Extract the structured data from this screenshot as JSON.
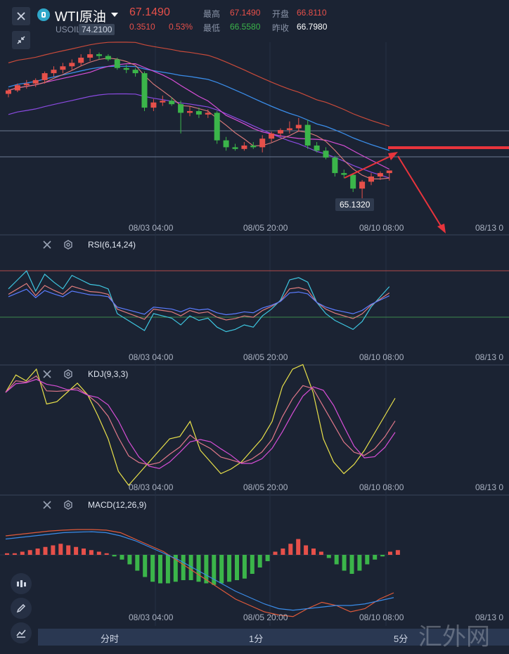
{
  "header": {
    "symbol": "WTI原油",
    "sub_symbol": "USOIL",
    "price": "67.1490",
    "change": "0.3510",
    "change_pct": "0.53%",
    "high_label": "最高",
    "high_value": "67.1490",
    "open_label": "开盘",
    "open_value": "66.8110",
    "low_label": "最低",
    "low_value": "66.5580",
    "prev_close_label": "昨收",
    "prev_close_value": "66.7980"
  },
  "price_panel": {
    "max_label": "74.2100",
    "min_label": "65.1320",
    "x_ticks": [
      "08/03 04:00",
      "08/05 20:00",
      "08/10 08:00",
      "08/13 0"
    ]
  },
  "rsi_panel": {
    "title": "RSI(6,14,24)",
    "x_ticks": [
      "08/03 04:00",
      "08/05 20:00",
      "08/10 08:00",
      "08/13 0"
    ]
  },
  "kdj_panel": {
    "title": "KDJ(9,3,3)",
    "x_ticks": [
      "08/03 04:00",
      "08/05 20:00",
      "08/10 08:00",
      "08/13 0"
    ]
  },
  "macd_panel": {
    "title": "MACD(12,26,9)",
    "x_ticks": [
      "08/03 04:00",
      "08/05 20:00",
      "08/10 08:00",
      "08/13 0"
    ]
  },
  "periods": [
    "分时",
    "1分",
    "5分"
  ],
  "watermark": "汇外网",
  "colors": {
    "up": "#e6504a",
    "down": "#3bb54a",
    "bg": "#1b2333",
    "rsi1": "#3ec6e0",
    "rsi2": "#e07c7c",
    "rsi3": "#5b7cff",
    "k": "#e8e04a",
    "d": "#e0788a",
    "j": "#d64ed6"
  },
  "icons": [
    "close-icon",
    "info-icon",
    "dropdown-icon",
    "shrink-icon",
    "settings-icon",
    "candle-icon",
    "pen-icon",
    "line-tool-icon"
  ],
  "chart_data": {
    "type": "candlestick",
    "candles": [
      [
        71.6,
        71.9,
        71.4,
        71.8
      ],
      [
        71.8,
        72.2,
        71.7,
        72.1
      ],
      [
        72.1,
        72.4,
        71.9,
        72.2
      ],
      [
        72.2,
        72.5,
        72.0,
        72.4
      ],
      [
        72.4,
        72.9,
        72.2,
        72.8
      ],
      [
        72.8,
        73.2,
        72.6,
        73.0
      ],
      [
        73.0,
        73.4,
        72.8,
        73.2
      ],
      [
        73.2,
        73.6,
        73.0,
        73.4
      ],
      [
        73.4,
        73.9,
        73.2,
        73.7
      ],
      [
        73.7,
        74.21,
        73.5,
        73.9
      ],
      [
        73.9,
        74.0,
        73.6,
        73.8
      ],
      [
        73.8,
        73.9,
        73.5,
        73.6
      ],
      [
        73.6,
        73.7,
        73.0,
        73.1
      ],
      [
        73.1,
        73.3,
        72.8,
        73.0
      ],
      [
        73.0,
        73.1,
        72.6,
        72.8
      ],
      [
        72.8,
        72.9,
        70.6,
        70.8
      ],
      [
        70.8,
        71.3,
        70.6,
        71.1
      ],
      [
        71.1,
        71.5,
        70.9,
        71.2
      ],
      [
        71.2,
        71.4,
        70.9,
        71.0
      ],
      [
        71.0,
        71.2,
        69.3,
        70.5
      ],
      [
        70.5,
        70.9,
        70.3,
        70.6
      ],
      [
        70.6,
        70.8,
        70.2,
        70.4
      ],
      [
        70.4,
        70.7,
        70.2,
        70.5
      ],
      [
        70.5,
        70.6,
        68.7,
        68.9
      ],
      [
        68.9,
        69.1,
        68.3,
        68.5
      ],
      [
        68.5,
        68.7,
        68.3,
        68.4
      ],
      [
        68.4,
        68.8,
        68.3,
        68.6
      ],
      [
        68.6,
        68.8,
        68.4,
        68.5
      ],
      [
        68.5,
        69.2,
        68.2,
        69.0
      ],
      [
        69.0,
        69.4,
        68.8,
        69.3
      ],
      [
        69.3,
        69.6,
        69.1,
        69.5
      ],
      [
        69.5,
        70.0,
        69.3,
        69.6
      ],
      [
        69.6,
        70.2,
        69.4,
        69.8
      ],
      [
        69.8,
        70.1,
        68.4,
        68.6
      ],
      [
        68.6,
        68.8,
        68.2,
        68.3
      ],
      [
        68.3,
        68.5,
        67.8,
        67.9
      ],
      [
        67.9,
        68.0,
        66.8,
        67.0
      ],
      [
        67.0,
        67.2,
        66.7,
        66.9
      ],
      [
        66.9,
        67.0,
        65.9,
        66.1
      ],
      [
        66.1,
        66.6,
        65.13,
        66.5
      ],
      [
        66.5,
        67.0,
        66.3,
        66.8
      ],
      [
        66.8,
        67.1,
        66.6,
        67.0
      ],
      [
        67.0,
        67.15,
        66.56,
        67.149
      ]
    ],
    "max_label": 74.21,
    "min_label": 65.132,
    "x_ticks": [
      "08/03 04:00",
      "08/05 20:00",
      "08/10 08:00",
      "08/13 0"
    ]
  }
}
